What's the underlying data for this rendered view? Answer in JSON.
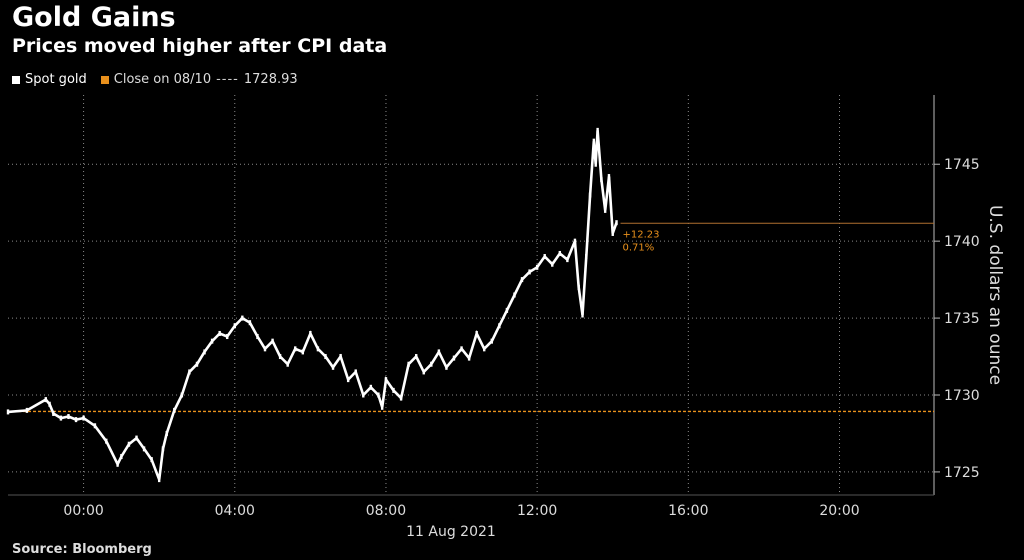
{
  "header": {
    "title": "Gold Gains",
    "subtitle": "Prices moved higher after CPI data"
  },
  "legend": {
    "series_label": "Spot gold",
    "close_label": "Close on 08/10",
    "close_dashes": "----",
    "close_value": "1728.93"
  },
  "annotation": {
    "change_abs": "+12.23",
    "change_pct": "0.71%"
  },
  "source": "Source: Bloomberg",
  "colors": {
    "background": "#000000",
    "series": "#ffffff",
    "close_line": "#e8901c",
    "grid": "#8a8a8a"
  },
  "chart_data": {
    "type": "line",
    "title": "Gold Gains",
    "subtitle": "Prices moved higher after CPI data",
    "ylabel": "U.S. dollars an ounce",
    "xlabel": "11 Aug 2021",
    "xlim": [
      -2.0,
      22.5
    ],
    "ylim": [
      1723.5,
      1749.5
    ],
    "x_ticks": [
      0,
      4,
      8,
      12,
      16,
      20
    ],
    "x_tick_labels": [
      "00:00",
      "04:00",
      "08:00",
      "12:00",
      "16:00",
      "20:00"
    ],
    "y_ticks": [
      1725,
      1730,
      1735,
      1740,
      1745
    ],
    "y_tick_labels": [
      "1725",
      "1730",
      "1735",
      "1740",
      "1745"
    ],
    "grid": true,
    "reference_line": {
      "name": "Close on 08/10",
      "value": 1728.93
    },
    "current_level_line": 1741.16,
    "series": [
      {
        "name": "Spot gold",
        "x": [
          -2.0,
          -1.5,
          -1.0,
          -0.9,
          -0.8,
          -0.6,
          -0.4,
          -0.2,
          0.0,
          0.3,
          0.6,
          0.9,
          1.0,
          1.2,
          1.4,
          1.6,
          1.8,
          2.0,
          2.1,
          2.2,
          2.4,
          2.6,
          2.8,
          3.0,
          3.2,
          3.4,
          3.6,
          3.8,
          4.0,
          4.2,
          4.4,
          4.6,
          4.8,
          5.0,
          5.2,
          5.4,
          5.6,
          5.8,
          6.0,
          6.2,
          6.4,
          6.6,
          6.8,
          7.0,
          7.2,
          7.4,
          7.6,
          7.8,
          7.9,
          8.0,
          8.2,
          8.4,
          8.6,
          8.8,
          9.0,
          9.2,
          9.4,
          9.6,
          9.8,
          10.0,
          10.2,
          10.4,
          10.6,
          10.8,
          11.0,
          11.2,
          11.4,
          11.6,
          11.8,
          12.0,
          12.2,
          12.4,
          12.6,
          12.8,
          13.0,
          13.1,
          13.2,
          13.3,
          13.4,
          13.5,
          13.55,
          13.6,
          13.7,
          13.8,
          13.9,
          14.0,
          14.1
        ],
        "y": [
          1728.9,
          1729.0,
          1729.7,
          1729.4,
          1728.8,
          1728.5,
          1728.6,
          1728.4,
          1728.5,
          1728.0,
          1727.0,
          1725.5,
          1726.0,
          1726.8,
          1727.2,
          1726.5,
          1725.8,
          1724.5,
          1726.5,
          1727.5,
          1729.0,
          1730.0,
          1731.5,
          1732.0,
          1732.8,
          1733.5,
          1734.0,
          1733.8,
          1734.5,
          1735.0,
          1734.7,
          1733.8,
          1733.0,
          1733.5,
          1732.5,
          1732.0,
          1733.0,
          1732.8,
          1734.0,
          1733.0,
          1732.5,
          1731.8,
          1732.5,
          1731.0,
          1731.5,
          1730.0,
          1730.5,
          1730.0,
          1729.2,
          1731.0,
          1730.3,
          1729.8,
          1732.0,
          1732.5,
          1731.5,
          1732.0,
          1732.8,
          1731.8,
          1732.4,
          1733.0,
          1732.4,
          1734.0,
          1733.0,
          1733.5,
          1734.5,
          1735.5,
          1736.5,
          1737.5,
          1738.0,
          1738.3,
          1739.0,
          1738.5,
          1739.2,
          1738.8,
          1740.0,
          1737.0,
          1735.2,
          1739.0,
          1743.0,
          1746.5,
          1745.0,
          1747.2,
          1744.0,
          1742.0,
          1744.2,
          1740.5,
          1741.2
        ]
      }
    ]
  }
}
